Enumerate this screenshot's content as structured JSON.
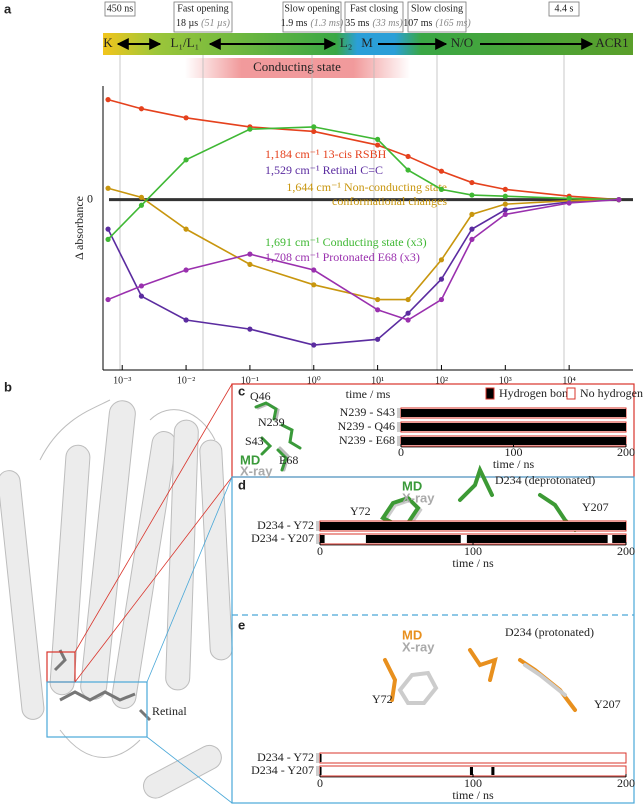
{
  "figure": {
    "panel_labels": [
      "a",
      "b",
      "c",
      "d",
      "e"
    ],
    "retinal_label": "Retinal",
    "c_molecules": [
      "Q46",
      "N239",
      "S43",
      "E68"
    ],
    "c_md": "MD",
    "c_xray": "X-ray",
    "d_molecules": {
      "md": "MD",
      "xray": "X-ray",
      "d234": "D234 (deprotonated)",
      "y72": "Y72",
      "y207": "Y207"
    },
    "e_molecules": {
      "md": "MD",
      "xray": "X-ray",
      "d234": "D234 (protonated)",
      "y72": "Y72",
      "y207": "Y207"
    }
  },
  "chart_data": [
    {
      "type": "line",
      "xlabel": "time / ms",
      "ylabel": "Δ absorbance",
      "log_x": true,
      "xlim": [
        0.0005,
        100000
      ],
      "xticks": [
        {
          "value": 0.001,
          "label": "10⁻³"
        },
        {
          "value": 0.01,
          "label": "10⁻²"
        },
        {
          "value": 0.1,
          "label": "10⁻¹"
        },
        {
          "value": 1,
          "label": "10⁰"
        },
        {
          "value": 10,
          "label": "10¹"
        },
        {
          "value": 100,
          "label": "10²"
        },
        {
          "value": 1000,
          "label": "10³"
        },
        {
          "value": 10000,
          "label": "10⁴"
        }
      ],
      "ylim": [
        -1.5,
        1
      ],
      "yticks": [
        0
      ],
      "stages": [
        "K",
        "L₁/L₁'",
        "L₂",
        "M",
        "N/O",
        "ACR1"
      ],
      "state_label": "Conducting state",
      "transitions": [
        {
          "time": "450 ns"
        },
        {
          "name": "Fast opening",
          "time": "18 µs",
          "alt_time": "(51 µs)"
        },
        {
          "name": "Slow opening",
          "time": "1.9 ms",
          "alt_time": "(1.3 ms)"
        },
        {
          "name": "Fast closing",
          "time": "35 ms",
          "alt_time": "(33 ms)"
        },
        {
          "name": "Slow closing",
          "time": "107 ms",
          "alt_time": "(165 ms)"
        },
        {
          "time": "4.4 s"
        }
      ],
      "x": [
        0.0006,
        0.002,
        0.01,
        0.1,
        1,
        10,
        30,
        100,
        300,
        1000,
        10000,
        60000
      ],
      "series": [
        {
          "name": "1,184 cm⁻¹ 13-cis RSBH",
          "color": "#e5411d",
          "values": [
            0.88,
            0.8,
            0.72,
            0.64,
            0.6,
            0.48,
            0.38,
            0.25,
            0.15,
            0.09,
            0.03,
            0
          ]
        },
        {
          "name": "1,529 cm⁻¹ Retinal C=C",
          "color": "#5b2ca0",
          "values": [
            -0.26,
            -0.85,
            -1.06,
            -1.14,
            -1.28,
            -1.23,
            -1.0,
            -0.7,
            -0.26,
            -0.09,
            -0.02,
            0
          ]
        },
        {
          "name": "1,644 cm⁻¹ Non-conducting state conformational changes",
          "color": "#c8960e",
          "values": [
            0.1,
            0.02,
            -0.26,
            -0.57,
            -0.75,
            -0.88,
            -0.88,
            -0.53,
            -0.13,
            -0.04,
            -0.01,
            0
          ]
        },
        {
          "name": "1,691 cm⁻¹ Conducting state (x3)",
          "color": "#3fb834",
          "values": [
            -0.35,
            -0.05,
            0.35,
            0.62,
            0.64,
            0.53,
            0.26,
            0.09,
            0.04,
            0.03,
            0.01,
            0
          ]
        },
        {
          "name": "1,708 cm⁻¹ Protonated E68 (x3)",
          "color": "#9a30ae",
          "values": [
            -0.88,
            -0.76,
            -0.62,
            -0.48,
            -0.62,
            -0.97,
            -1.06,
            -0.88,
            -0.35,
            -0.13,
            -0.03,
            0
          ]
        }
      ]
    },
    {
      "type": "timeline",
      "legend": [
        "Hydrogen bond",
        "No hydrogen bond"
      ],
      "xlabel": "time / ns",
      "xlim": [
        0,
        200
      ],
      "xticks": [
        0,
        100,
        200
      ],
      "series": [
        {
          "name": "N239 - S43",
          "segments": [
            [
              0,
              200
            ]
          ]
        },
        {
          "name": "N239 - Q46",
          "segments": [
            [
              0,
              200
            ]
          ]
        },
        {
          "name": "N239 - E68",
          "segments": [
            [
              0,
              200
            ]
          ]
        }
      ]
    },
    {
      "type": "timeline",
      "xlabel": "time / ns",
      "xlim": [
        0,
        200
      ],
      "xticks": [
        0,
        100,
        200
      ],
      "series": [
        {
          "name": "D234 - Y72",
          "segments": [
            [
              0,
              200
            ]
          ]
        },
        {
          "name": "D234 - Y207",
          "segments": [
            [
              0,
              3
            ],
            [
              30,
              92
            ],
            [
              96,
              188
            ],
            [
              191,
              200
            ]
          ]
        }
      ]
    },
    {
      "type": "timeline",
      "xlabel": "time / ns",
      "xlim": [
        0,
        200
      ],
      "xticks": [
        0,
        100,
        200
      ],
      "series": [
        {
          "name": "D234 - Y72",
          "segments": [
            [
              0,
              1
            ]
          ]
        },
        {
          "name": "D234 - Y207",
          "segments": [
            [
              0,
              1
            ],
            [
              98,
              100
            ],
            [
              112,
              114
            ]
          ]
        }
      ]
    }
  ]
}
